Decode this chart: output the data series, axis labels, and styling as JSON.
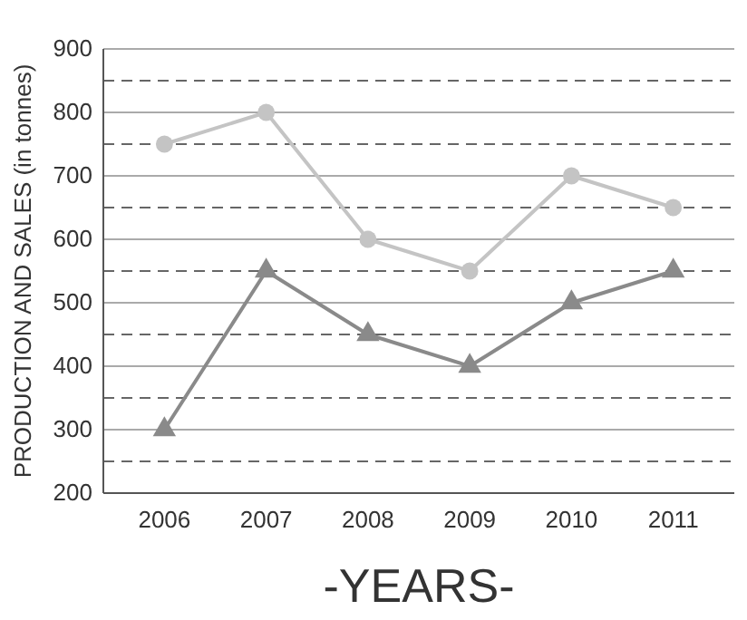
{
  "chart_data": {
    "type": "line",
    "xlabel": "-YEARS-",
    "ylabel": "PRODUCTION AND SALES (in tonnes)",
    "categories": [
      "2006",
      "2007",
      "2008",
      "2009",
      "2010",
      "2011"
    ],
    "series": [
      {
        "color": "#c4c4c4",
        "marker": "circle",
        "values": [
          750,
          800,
          600,
          550,
          700,
          650
        ]
      },
      {
        "color": "#8a8a8a",
        "marker": "triangle",
        "values": [
          300,
          550,
          450,
          400,
          500,
          550
        ]
      }
    ],
    "ylim": [
      200,
      900
    ],
    "yticks": [
      200,
      {
        "value": 250,
        "label": null
      },
      300,
      {
        "value": 350,
        "label": null
      },
      400,
      {
        "value": 450,
        "label": null
      },
      500,
      {
        "value": 550,
        "label": null
      },
      600,
      {
        "value": 650,
        "label": null
      },
      700,
      {
        "value": 750,
        "label": null
      },
      800,
      {
        "value": 850,
        "label": null
      },
      900
    ],
    "grid": "y"
  }
}
